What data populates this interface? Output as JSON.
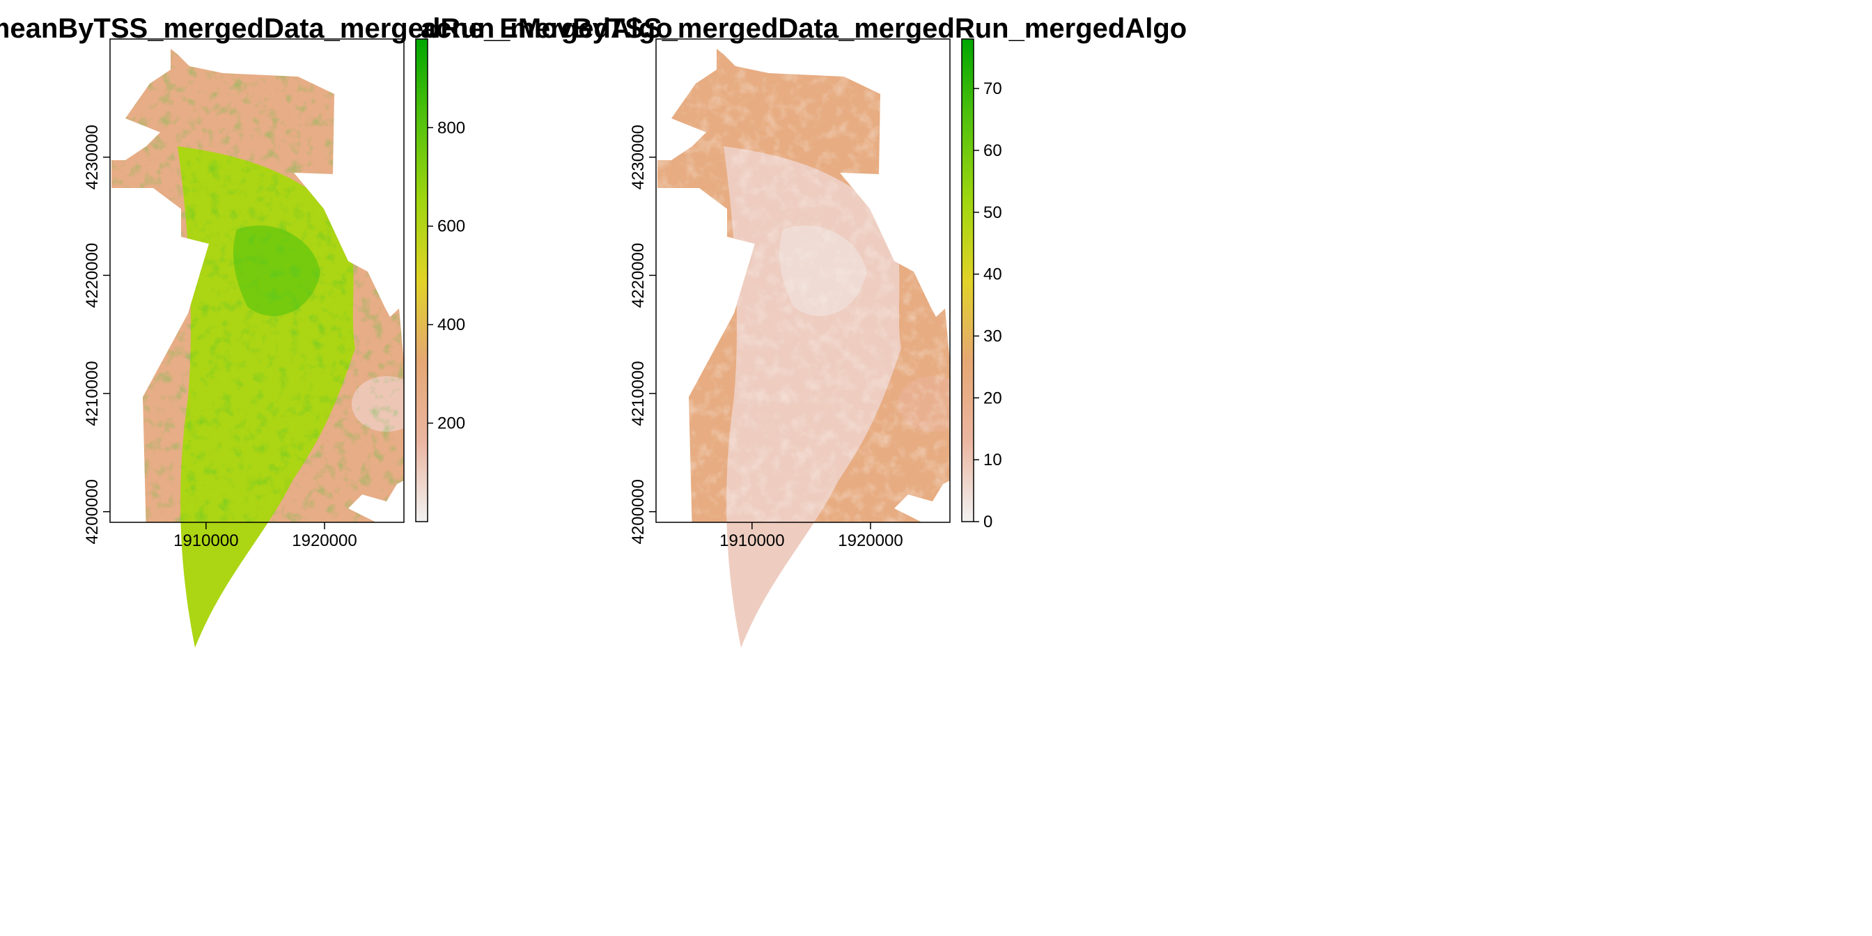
{
  "chart_data": [
    {
      "type": "heatmap",
      "title": "acne_EMwmeanByTSS_mergedData_mergedRun_mergedAlgo",
      "xlabel": "",
      "ylabel": "",
      "xlim": [
        1901900,
        1926700
      ],
      "ylim": [
        4199100,
        4240000
      ],
      "x_ticks": [
        1910000,
        1920000
      ],
      "x_tick_labels": [
        "1910000",
        "1920000"
      ],
      "y_ticks": [
        4200000,
        4210000,
        4220000,
        4230000
      ],
      "y_tick_labels": [
        "4200000",
        "4210000",
        "4220000",
        "4230000"
      ],
      "legend": {
        "placement": "right",
        "range": [
          0,
          980
        ],
        "ticks": [
          200,
          400,
          600,
          800
        ],
        "tick_labels": [
          "200",
          "400",
          "600",
          "800"
        ]
      },
      "colors": [
        "#f2f2f2",
        "#ebb6a1",
        "#e5a773",
        "#e1d327",
        "#9fd60f",
        "#53c20e",
        "#00a600"
      ],
      "region_values": {
        "border": 260,
        "interior": 620,
        "valley_core": 740,
        "southeast": 120
      }
    },
    {
      "type": "heatmap",
      "title": "acne_EMcvByTSS_mergedData_mergedRun_mergedAlgo",
      "xlabel": "",
      "ylabel": "",
      "xlim": [
        1901900,
        1926700
      ],
      "ylim": [
        4199100,
        4240000
      ],
      "x_ticks": [
        1910000,
        1920000
      ],
      "x_tick_labels": [
        "1910000",
        "1920000"
      ],
      "y_ticks": [
        4200000,
        4210000,
        4220000,
        4230000
      ],
      "y_tick_labels": [
        "4200000",
        "4210000",
        "4220000",
        "4230000"
      ],
      "legend": {
        "placement": "right",
        "range": [
          0,
          78
        ],
        "ticks": [
          0,
          10,
          20,
          30,
          40,
          50,
          60,
          70
        ],
        "tick_labels": [
          "0",
          "10",
          "20",
          "30",
          "40",
          "50",
          "60",
          "70"
        ]
      },
      "colors": [
        "#f2f2f2",
        "#ebb6a1",
        "#e5a773",
        "#e1d327",
        "#9fd60f",
        "#53c20e",
        "#00a600"
      ],
      "region_values": {
        "border": 22,
        "interior": 8,
        "valley_core": 5,
        "southeast": 18
      }
    }
  ]
}
